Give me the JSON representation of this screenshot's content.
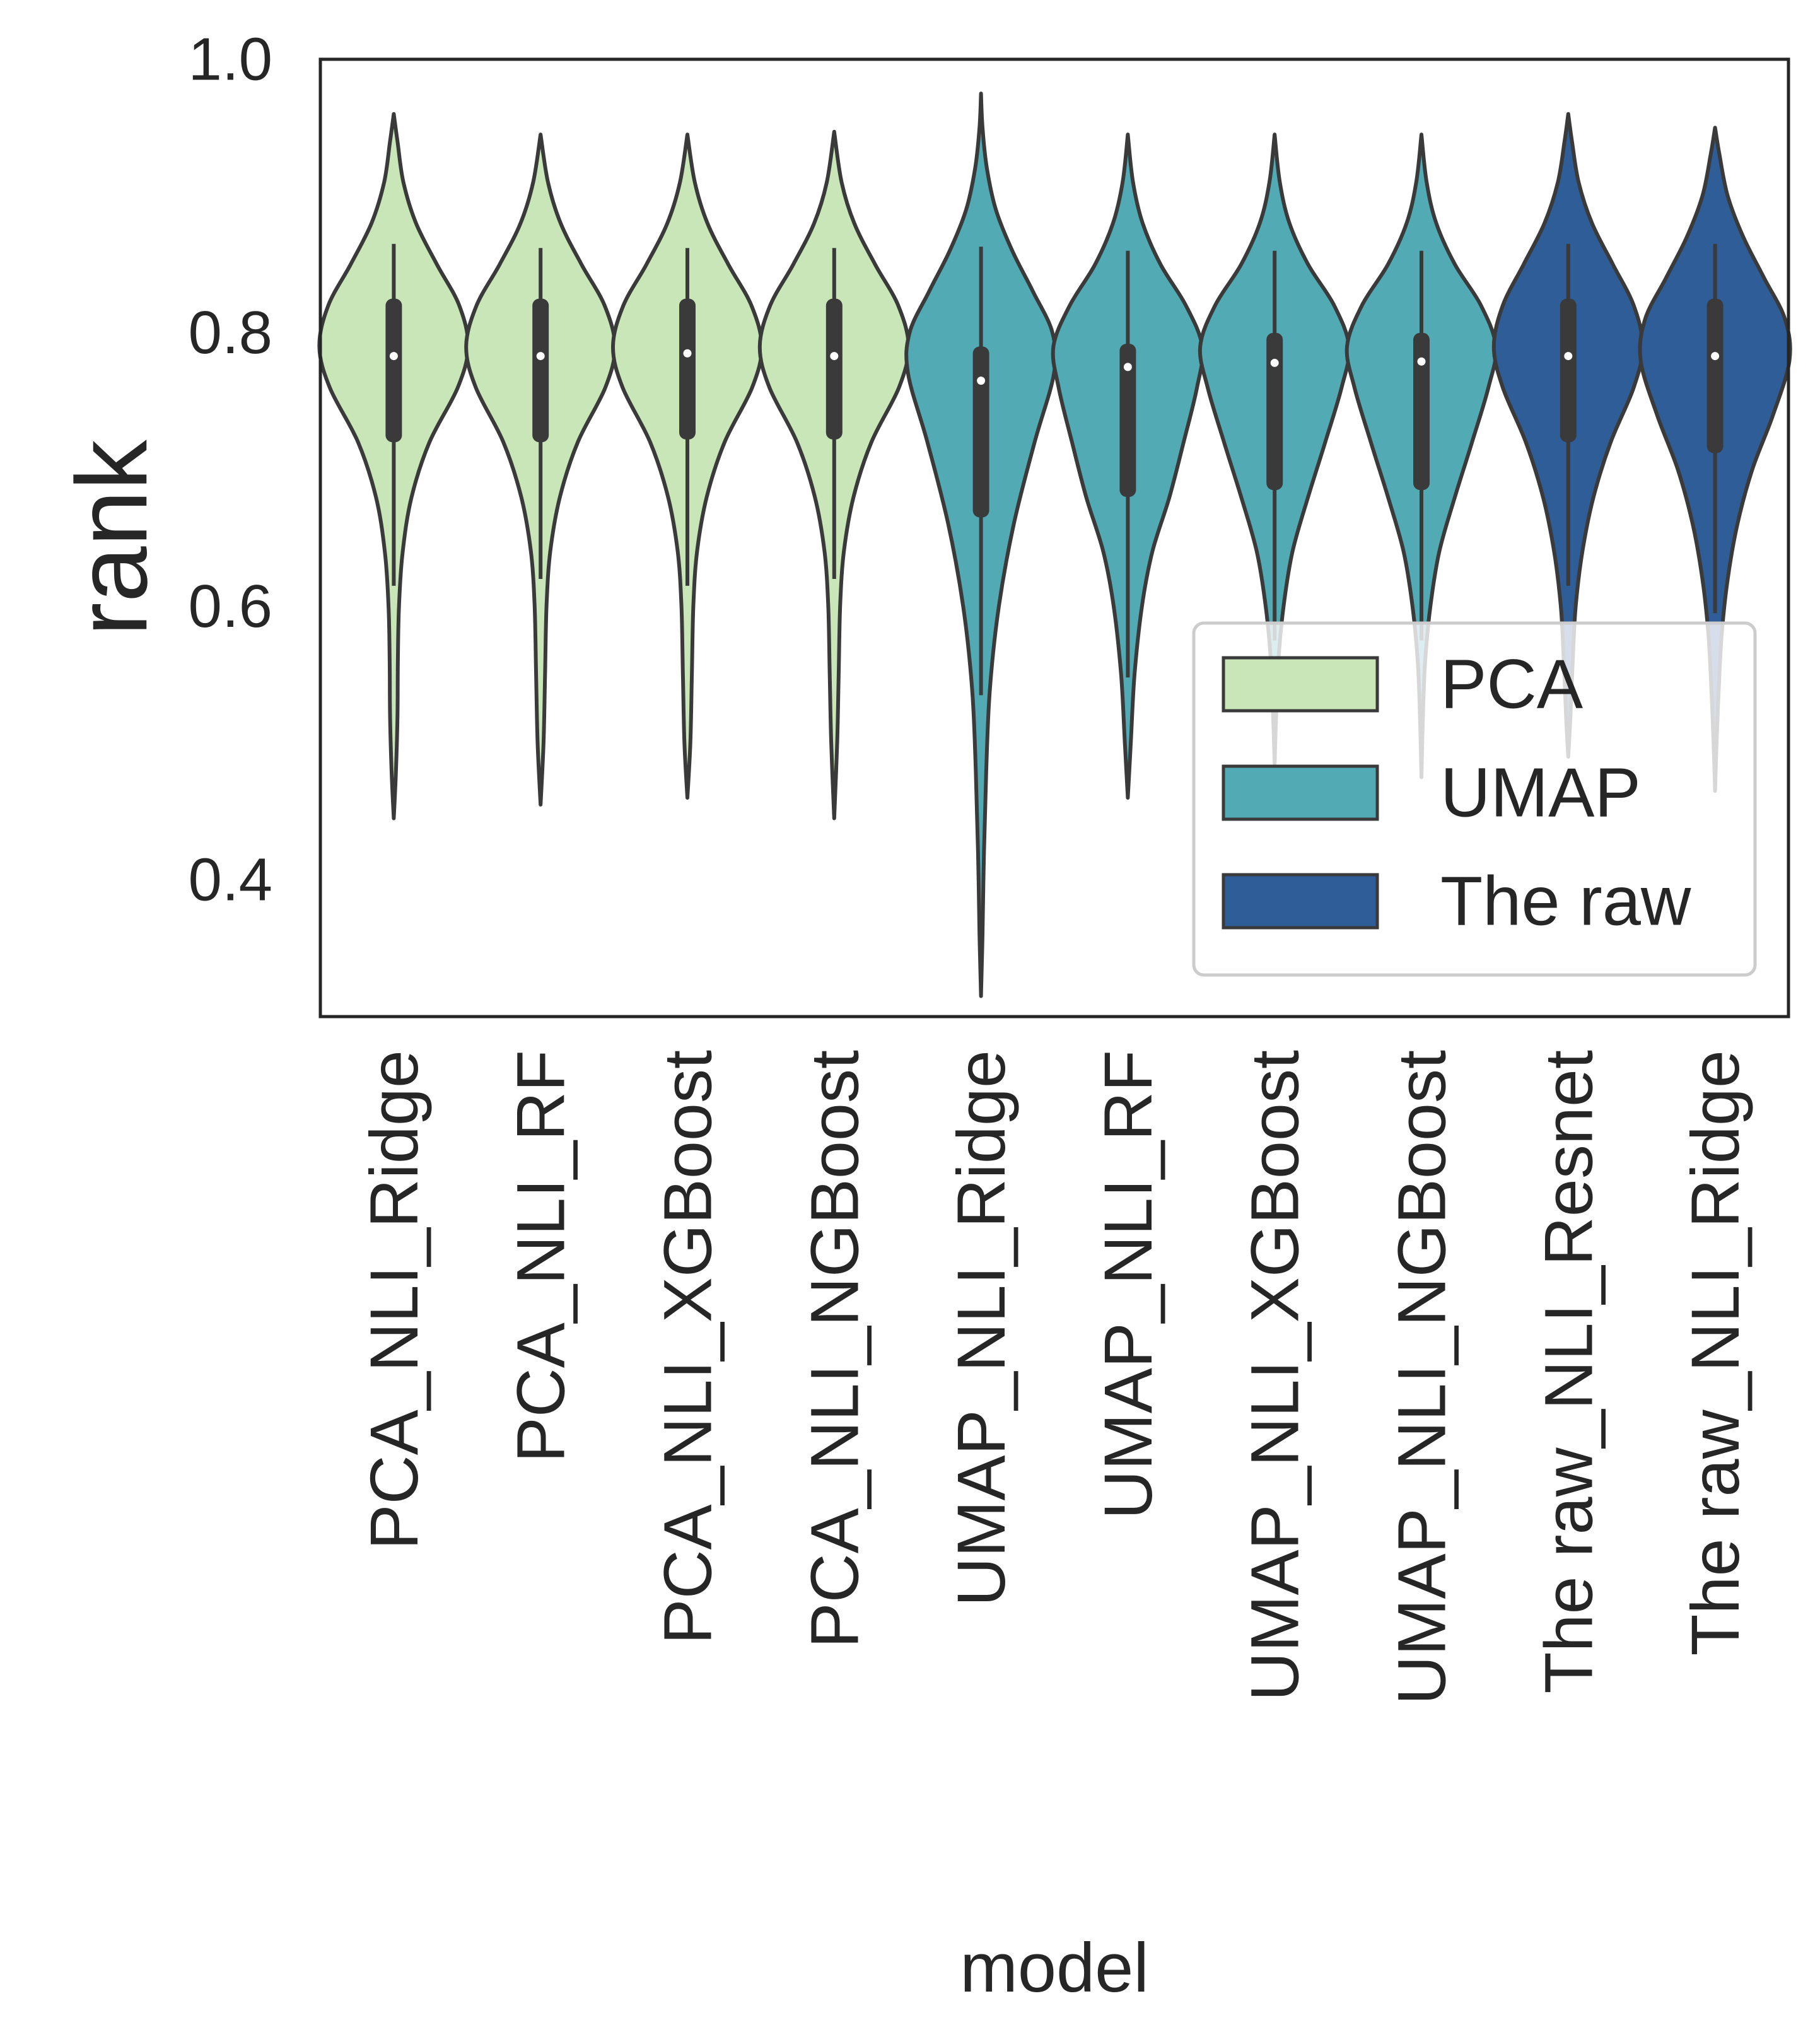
{
  "chart_data": {
    "type": "violin",
    "xlabel": "model",
    "ylabel": "rank",
    "ylim": [
      0.3,
      1.0
    ],
    "yticks": [
      "0.4",
      "0.6",
      "0.8",
      "1.0"
    ],
    "ytick_values": [
      0.4,
      0.6,
      0.8,
      1.0
    ],
    "grid": false,
    "legend_position": "lower-right",
    "categories": [
      "PCA_NLI_Ridge",
      "PCA_NLI_RF",
      "PCA_NLI_XGBoost",
      "PCA_NLI_NGBoost",
      "UMAP_NLI_Ridge",
      "UMAP_NLI_RF",
      "UMAP_NLI_XGBoost",
      "UMAP_NLI_NGBoost",
      "The raw_NLI_Resnet",
      "The raw_NLI_Ridge"
    ],
    "groups": [
      {
        "name": "PCA",
        "color": "#c9e6b9"
      },
      {
        "name": "UMAP",
        "color": "#52aab5"
      },
      {
        "name": "The raw",
        "color": "#2f5d98"
      }
    ],
    "violins": [
      {
        "category": "PCA_NLI_Ridge",
        "group": "PCA",
        "min": 0.445,
        "max": 0.96,
        "whisker_low": 0.615,
        "whisker_high": 0.865,
        "q1": 0.72,
        "median": 0.783,
        "q3": 0.825,
        "profile": [
          [
            0.445,
            0.0
          ],
          [
            0.48,
            0.03
          ],
          [
            0.52,
            0.05
          ],
          [
            0.56,
            0.055
          ],
          [
            0.6,
            0.07
          ],
          [
            0.64,
            0.12
          ],
          [
            0.68,
            0.24
          ],
          [
            0.72,
            0.48
          ],
          [
            0.76,
            0.86
          ],
          [
            0.79,
            1.0
          ],
          [
            0.82,
            0.88
          ],
          [
            0.85,
            0.58
          ],
          [
            0.88,
            0.3
          ],
          [
            0.91,
            0.13
          ],
          [
            0.94,
            0.05
          ],
          [
            0.96,
            0.0
          ]
        ]
      },
      {
        "category": "PCA_NLI_RF",
        "group": "PCA",
        "min": 0.455,
        "max": 0.945,
        "whisker_low": 0.62,
        "whisker_high": 0.862,
        "q1": 0.72,
        "median": 0.783,
        "q3": 0.825,
        "profile": [
          [
            0.455,
            0.0
          ],
          [
            0.5,
            0.04
          ],
          [
            0.55,
            0.06
          ],
          [
            0.6,
            0.08
          ],
          [
            0.64,
            0.13
          ],
          [
            0.68,
            0.26
          ],
          [
            0.72,
            0.5
          ],
          [
            0.76,
            0.87
          ],
          [
            0.79,
            1.0
          ],
          [
            0.82,
            0.86
          ],
          [
            0.85,
            0.55
          ],
          [
            0.88,
            0.27
          ],
          [
            0.91,
            0.1
          ],
          [
            0.945,
            0.0
          ]
        ]
      },
      {
        "category": "PCA_NLI_XGBoost",
        "group": "PCA",
        "min": 0.46,
        "max": 0.945,
        "whisker_low": 0.615,
        "whisker_high": 0.862,
        "q1": 0.722,
        "median": 0.785,
        "q3": 0.825,
        "profile": [
          [
            0.46,
            0.0
          ],
          [
            0.5,
            0.04
          ],
          [
            0.55,
            0.06
          ],
          [
            0.6,
            0.08
          ],
          [
            0.64,
            0.13
          ],
          [
            0.68,
            0.26
          ],
          [
            0.72,
            0.5
          ],
          [
            0.76,
            0.87
          ],
          [
            0.79,
            1.0
          ],
          [
            0.82,
            0.86
          ],
          [
            0.85,
            0.55
          ],
          [
            0.88,
            0.27
          ],
          [
            0.91,
            0.1
          ],
          [
            0.945,
            0.0
          ]
        ]
      },
      {
        "category": "PCA_NLI_NGBoost",
        "group": "PCA",
        "min": 0.445,
        "max": 0.947,
        "whisker_low": 0.62,
        "whisker_high": 0.862,
        "q1": 0.722,
        "median": 0.783,
        "q3": 0.825,
        "profile": [
          [
            0.445,
            0.0
          ],
          [
            0.5,
            0.04
          ],
          [
            0.55,
            0.06
          ],
          [
            0.6,
            0.08
          ],
          [
            0.64,
            0.13
          ],
          [
            0.68,
            0.26
          ],
          [
            0.72,
            0.5
          ],
          [
            0.76,
            0.87
          ],
          [
            0.79,
            1.0
          ],
          [
            0.82,
            0.86
          ],
          [
            0.85,
            0.55
          ],
          [
            0.88,
            0.27
          ],
          [
            0.91,
            0.1
          ],
          [
            0.947,
            0.0
          ]
        ]
      },
      {
        "category": "UMAP_NLI_Ridge",
        "group": "UMAP",
        "min": 0.315,
        "max": 0.975,
        "whisker_low": 0.535,
        "whisker_high": 0.863,
        "q1": 0.665,
        "median": 0.765,
        "q3": 0.79,
        "profile": [
          [
            0.315,
            0.0
          ],
          [
            0.36,
            0.02
          ],
          [
            0.42,
            0.04
          ],
          [
            0.48,
            0.07
          ],
          [
            0.54,
            0.12
          ],
          [
            0.6,
            0.24
          ],
          [
            0.66,
            0.44
          ],
          [
            0.72,
            0.72
          ],
          [
            0.77,
            0.98
          ],
          [
            0.8,
            0.96
          ],
          [
            0.83,
            0.7
          ],
          [
            0.86,
            0.42
          ],
          [
            0.89,
            0.2
          ],
          [
            0.92,
            0.08
          ],
          [
            0.95,
            0.02
          ],
          [
            0.975,
            0.0
          ]
        ]
      },
      {
        "category": "UMAP_NLI_RF",
        "group": "UMAP",
        "min": 0.46,
        "max": 0.945,
        "whisker_low": 0.548,
        "whisker_high": 0.86,
        "q1": 0.68,
        "median": 0.775,
        "q3": 0.792,
        "profile": [
          [
            0.46,
            0.0
          ],
          [
            0.5,
            0.04
          ],
          [
            0.55,
            0.09
          ],
          [
            0.6,
            0.19
          ],
          [
            0.64,
            0.33
          ],
          [
            0.68,
            0.56
          ],
          [
            0.72,
            0.75
          ],
          [
            0.76,
            0.93
          ],
          [
            0.79,
            1.0
          ],
          [
            0.82,
            0.78
          ],
          [
            0.85,
            0.44
          ],
          [
            0.88,
            0.2
          ],
          [
            0.91,
            0.07
          ],
          [
            0.945,
            0.0
          ]
        ]
      },
      {
        "category": "UMAP_NLI_XGBoost",
        "group": "UMAP",
        "min": 0.485,
        "max": 0.945,
        "whisker_low": 0.575,
        "whisker_high": 0.86,
        "q1": 0.685,
        "median": 0.778,
        "q3": 0.8,
        "profile": [
          [
            0.485,
            0.0
          ],
          [
            0.52,
            0.02
          ],
          [
            0.56,
            0.05
          ],
          [
            0.6,
            0.12
          ],
          [
            0.64,
            0.24
          ],
          [
            0.68,
            0.45
          ],
          [
            0.72,
            0.68
          ],
          [
            0.76,
            0.9
          ],
          [
            0.79,
            1.0
          ],
          [
            0.82,
            0.8
          ],
          [
            0.85,
            0.45
          ],
          [
            0.88,
            0.2
          ],
          [
            0.91,
            0.07
          ],
          [
            0.945,
            0.0
          ]
        ]
      },
      {
        "category": "UMAP_NLI_NGBoost",
        "group": "UMAP",
        "min": 0.475,
        "max": 0.945,
        "whisker_low": 0.575,
        "whisker_high": 0.86,
        "q1": 0.685,
        "median": 0.779,
        "q3": 0.8,
        "profile": [
          [
            0.475,
            0.0
          ],
          [
            0.52,
            0.02
          ],
          [
            0.56,
            0.05
          ],
          [
            0.6,
            0.12
          ],
          [
            0.64,
            0.24
          ],
          [
            0.68,
            0.45
          ],
          [
            0.72,
            0.68
          ],
          [
            0.76,
            0.9
          ],
          [
            0.79,
            1.0
          ],
          [
            0.82,
            0.8
          ],
          [
            0.85,
            0.45
          ],
          [
            0.88,
            0.2
          ],
          [
            0.91,
            0.07
          ],
          [
            0.945,
            0.0
          ]
        ]
      },
      {
        "category": "The raw_NLI_Resnet",
        "group": "The raw",
        "min": 0.49,
        "max": 0.96,
        "whisker_low": 0.615,
        "whisker_high": 0.865,
        "q1": 0.72,
        "median": 0.783,
        "q3": 0.825,
        "profile": [
          [
            0.49,
            0.0
          ],
          [
            0.52,
            0.03
          ],
          [
            0.56,
            0.06
          ],
          [
            0.6,
            0.1
          ],
          [
            0.64,
            0.19
          ],
          [
            0.68,
            0.34
          ],
          [
            0.72,
            0.57
          ],
          [
            0.76,
            0.88
          ],
          [
            0.79,
            1.0
          ],
          [
            0.82,
            0.88
          ],
          [
            0.85,
            0.6
          ],
          [
            0.88,
            0.32
          ],
          [
            0.91,
            0.14
          ],
          [
            0.94,
            0.05
          ],
          [
            0.96,
            0.0
          ]
        ]
      },
      {
        "category": "The raw_NLI_Ridge",
        "group": "The raw",
        "min": 0.465,
        "max": 0.95,
        "whisker_low": 0.595,
        "whisker_high": 0.865,
        "q1": 0.712,
        "median": 0.783,
        "q3": 0.825,
        "profile": [
          [
            0.465,
            0.0
          ],
          [
            0.5,
            0.02
          ],
          [
            0.54,
            0.05
          ],
          [
            0.58,
            0.09
          ],
          [
            0.62,
            0.17
          ],
          [
            0.66,
            0.3
          ],
          [
            0.7,
            0.5
          ],
          [
            0.74,
            0.78
          ],
          [
            0.78,
            1.0
          ],
          [
            0.81,
            0.94
          ],
          [
            0.84,
            0.66
          ],
          [
            0.87,
            0.38
          ],
          [
            0.9,
            0.17
          ],
          [
            0.93,
            0.06
          ],
          [
            0.95,
            0.0
          ]
        ]
      }
    ]
  }
}
